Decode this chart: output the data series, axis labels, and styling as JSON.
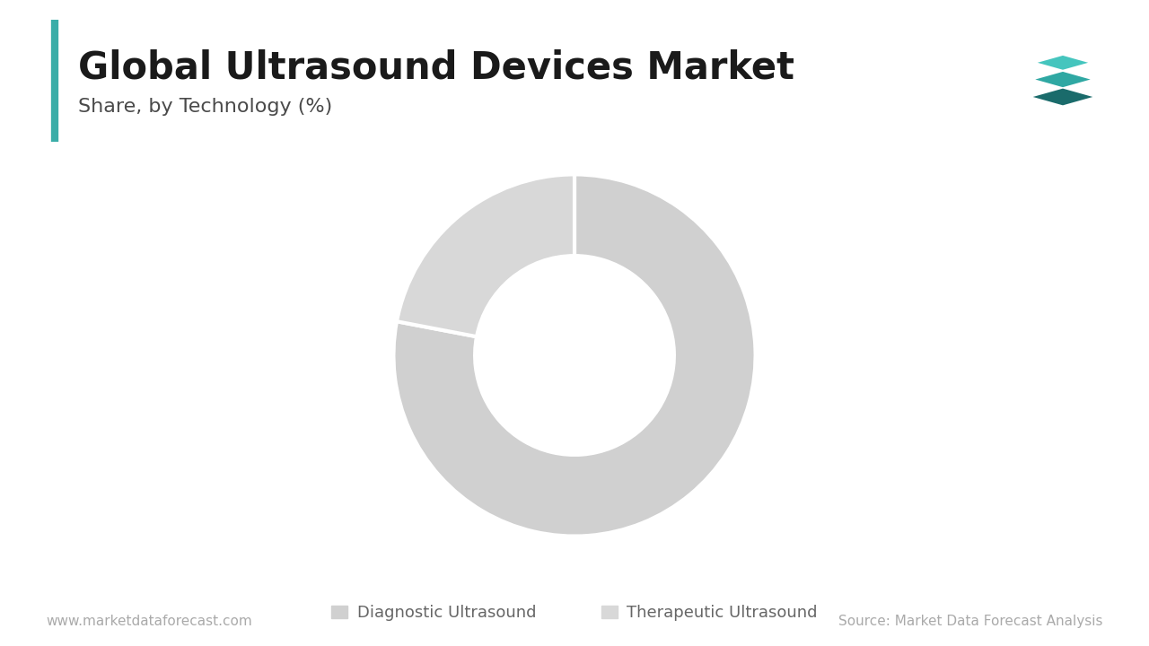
{
  "title": "Global Ultrasound Devices Market",
  "subtitle": "Share, by Technology (%)",
  "segments": [
    "Diagnostic Ultrasound",
    "Therapeutic Ultrasound"
  ],
  "values": [
    78,
    22
  ],
  "colors": [
    "#d0d0d0",
    "#d8d8d8"
  ],
  "wedge_edge_color": "#ffffff",
  "wedge_linewidth": 3.0,
  "donut_hole": 0.55,
  "background_color": "#ffffff",
  "title_color": "#1a1a1a",
  "subtitle_color": "#4a4a4a",
  "title_fontsize": 30,
  "subtitle_fontsize": 16,
  "accent_bar_color": "#3aada8",
  "footer_left": "www.marketdataforecast.com",
  "footer_right": "Source: Market Data Forecast Analysis",
  "footer_color": "#aaaaaa",
  "footer_fontsize": 11,
  "legend_fontsize": 13,
  "legend_color": "#666666"
}
